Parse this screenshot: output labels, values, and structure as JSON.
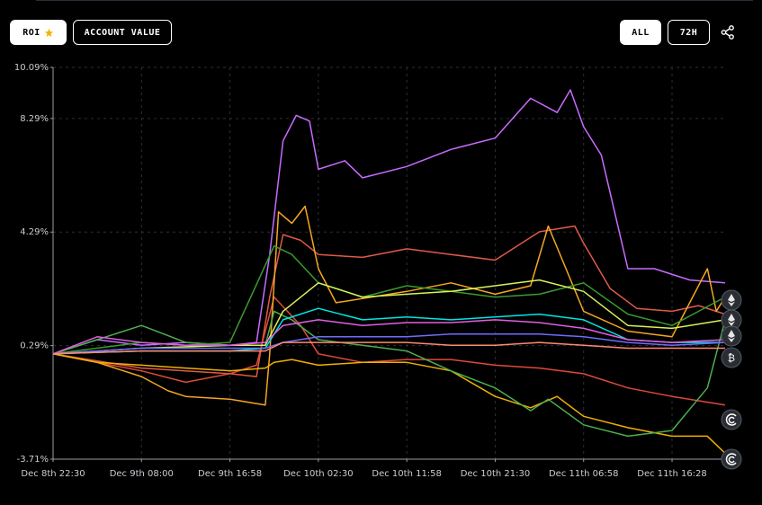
{
  "toolbar": {
    "roi_label": "ROI",
    "account_value_label": "ACCOUNT VALUE",
    "range_all_label": "ALL",
    "range_72h_label": "72H"
  },
  "icons": {
    "roi": "star-icon",
    "share": "share-icon",
    "markers": [
      "ethereum-icon",
      "ethereum-icon",
      "ethereum-icon",
      "bitcoin-icon",
      "swirl-icon",
      "swirl-icon"
    ]
  },
  "colors": {
    "background": "#000000",
    "star": "#f5b301",
    "grid": "#2c2f36",
    "axis": "#9aa0a6"
  },
  "chart_data": {
    "type": "line",
    "title": "",
    "xlabel": "",
    "ylabel": "",
    "ylim": [
      -3.71,
      10.09
    ],
    "y_ticks": [
      "10.09%",
      "8.29%",
      "4.29%",
      "0.29%",
      "-3.71%"
    ],
    "y_tick_values": [
      10.09,
      8.29,
      4.29,
      0.29,
      -3.71
    ],
    "x_ticks": [
      "Dec 8th 22:30",
      "Dec 9th 08:00",
      "Dec 9th 16:58",
      "Dec 10th 02:30",
      "Dec 10th 11:58",
      "Dec 10th 21:30",
      "Dec 11th 06:58",
      "Dec 11th 16:28"
    ],
    "x_tick_values": [
      0,
      1,
      2,
      3,
      4,
      5,
      6,
      7
    ],
    "xlim": [
      0,
      7.6
    ],
    "grid": true,
    "legend": "none",
    "series": [
      {
        "color": "#c86cff",
        "x": [
          0,
          0.5,
          1,
          1.5,
          2,
          2.3,
          2.45,
          2.6,
          2.75,
          2.9,
          3,
          3.3,
          3.5,
          4,
          4.5,
          5,
          5.4,
          5.7,
          5.85,
          6,
          6.2,
          6.5,
          6.8,
          7.2,
          7.6
        ],
        "y": [
          0,
          0.5,
          0.3,
          0.4,
          0.3,
          0.4,
          3.5,
          7.5,
          8.4,
          8.2,
          6.5,
          6.8,
          6.2,
          6.6,
          7.2,
          7.6,
          9,
          8.5,
          9.3,
          8,
          7,
          3,
          3,
          2.6,
          2.5
        ]
      },
      {
        "color": "#e05a47",
        "x": [
          0,
          1,
          2,
          2.3,
          2.45,
          2.6,
          2.8,
          3,
          3.5,
          4,
          4.5,
          5,
          5.5,
          5.9,
          6,
          6.3,
          6.6,
          7,
          7.3,
          7.6
        ],
        "y": [
          0,
          -0.5,
          -0.7,
          -0.8,
          2,
          4.2,
          4,
          3.5,
          3.4,
          3.7,
          3.5,
          3.3,
          4.3,
          4.5,
          3.9,
          2.3,
          1.6,
          1.5,
          1.7,
          1.4
        ]
      },
      {
        "color": "#e04a3a",
        "x": [
          0,
          1,
          1.5,
          2,
          2.3,
          2.5,
          2.8,
          3,
          3.5,
          4,
          4.5,
          5,
          5.5,
          6,
          6.5,
          7,
          7.6
        ],
        "y": [
          0,
          -0.6,
          -1,
          -0.7,
          -0.4,
          2,
          1,
          0,
          -0.3,
          -0.2,
          -0.2,
          -0.4,
          -0.5,
          -0.7,
          -1.2,
          -1.5,
          -1.8
        ]
      },
      {
        "color": "#f5a623",
        "x": [
          0,
          0.5,
          1,
          1.3,
          1.5,
          2,
          2.4,
          2.45,
          2.55,
          2.7,
          2.85,
          3,
          3.2,
          3.6,
          4,
          4.5,
          5,
          5.4,
          5.6,
          5.8,
          6,
          6.5,
          7,
          7.4,
          7.5,
          7.6
        ],
        "y": [
          0,
          -0.3,
          -0.8,
          -1.3,
          -1.5,
          -1.6,
          -1.8,
          0,
          5,
          4.6,
          5.2,
          3,
          1.8,
          2,
          2.2,
          2.5,
          2.1,
          2.4,
          4.5,
          3,
          1.5,
          0.8,
          0.6,
          3,
          1.5,
          2
        ]
      },
      {
        "color": "#f0b000",
        "x": [
          0,
          0.5,
          1,
          1.5,
          2,
          2.4,
          2.5,
          2.7,
          3,
          3.5,
          4,
          4.5,
          5,
          5.4,
          5.7,
          6,
          6.5,
          7,
          7.4,
          7.6
        ],
        "y": [
          0,
          -0.3,
          -0.4,
          -0.5,
          -0.6,
          -0.5,
          -0.3,
          -0.2,
          -0.4,
          -0.3,
          -0.3,
          -0.6,
          -1.5,
          -1.9,
          -1.5,
          -2.2,
          -2.6,
          -2.9,
          -2.9,
          -3.5
        ]
      },
      {
        "color": "#4caf50",
        "x": [
          0,
          0.5,
          1,
          1.5,
          2,
          2.4,
          2.5,
          2.7,
          3,
          3.5,
          4,
          4.5,
          5,
          5.4,
          5.6,
          6,
          6.5,
          7,
          7.4,
          7.6
        ],
        "y": [
          0,
          0.5,
          1,
          0.4,
          0.3,
          0.3,
          1.5,
          1.2,
          0.5,
          0.3,
          0.1,
          -0.6,
          -1.2,
          -2,
          -1.6,
          -2.5,
          -2.9,
          -2.7,
          -1.2,
          1.2
        ]
      },
      {
        "color": "#3a9b2f",
        "x": [
          0,
          1,
          1.5,
          2,
          2.5,
          2.7,
          3,
          3.5,
          4,
          4.5,
          5,
          5.5,
          6,
          6.5,
          7,
          7.6
        ],
        "y": [
          0,
          0.4,
          0.3,
          0.4,
          3.8,
          3.5,
          2.5,
          2,
          2.4,
          2.2,
          2,
          2.1,
          2.5,
          1.4,
          1,
          2
        ]
      },
      {
        "color": "#d8f25a",
        "x": [
          0,
          1,
          2,
          2.4,
          2.6,
          3,
          3.5,
          4,
          4.5,
          5,
          5.5,
          6,
          6.5,
          7,
          7.6
        ],
        "y": [
          0,
          0.2,
          0.3,
          0.3,
          1.5,
          2.5,
          2,
          2.1,
          2.2,
          2.4,
          2.6,
          2.2,
          1,
          0.9,
          1.2
        ]
      },
      {
        "color": "#00e5e5",
        "x": [
          0,
          1,
          2,
          2.4,
          2.6,
          3,
          3.5,
          4,
          4.5,
          5,
          5.5,
          6,
          6.5,
          7,
          7.6
        ],
        "y": [
          0,
          0.1,
          0.1,
          0.2,
          1.2,
          1.6,
          1.2,
          1.3,
          1.2,
          1.3,
          1.4,
          1.2,
          0.5,
          0.4,
          0.4
        ]
      },
      {
        "color": "#e060e0",
        "x": [
          0,
          0.5,
          1,
          1.5,
          2,
          2.4,
          2.6,
          3,
          3.5,
          4,
          4.5,
          5,
          5.5,
          6,
          6.5,
          7,
          7.6
        ],
        "y": [
          0,
          0.6,
          0.4,
          0.3,
          0.3,
          0.4,
          1,
          1.2,
          1,
          1.1,
          1.1,
          1.2,
          1.1,
          0.9,
          0.5,
          0.4,
          0.5
        ]
      },
      {
        "color": "#6f6cff",
        "x": [
          0,
          1,
          2,
          2.4,
          2.6,
          3,
          3.5,
          4,
          4.5,
          5,
          5.5,
          6,
          6.5,
          7,
          7.6
        ],
        "y": [
          0,
          0.2,
          0.2,
          0.2,
          0.4,
          0.6,
          0.6,
          0.6,
          0.7,
          0.7,
          0.7,
          0.6,
          0.4,
          0.3,
          0.4
        ]
      },
      {
        "color": "#ff8a70",
        "x": [
          0,
          1,
          2,
          2.4,
          2.6,
          3,
          3.5,
          4,
          4.5,
          5,
          5.5,
          6,
          6.5,
          7,
          7.6
        ],
        "y": [
          0,
          0.1,
          0.1,
          0.1,
          0.4,
          0.4,
          0.4,
          0.4,
          0.3,
          0.3,
          0.4,
          0.3,
          0.2,
          0.2,
          0.2
        ]
      }
    ]
  }
}
